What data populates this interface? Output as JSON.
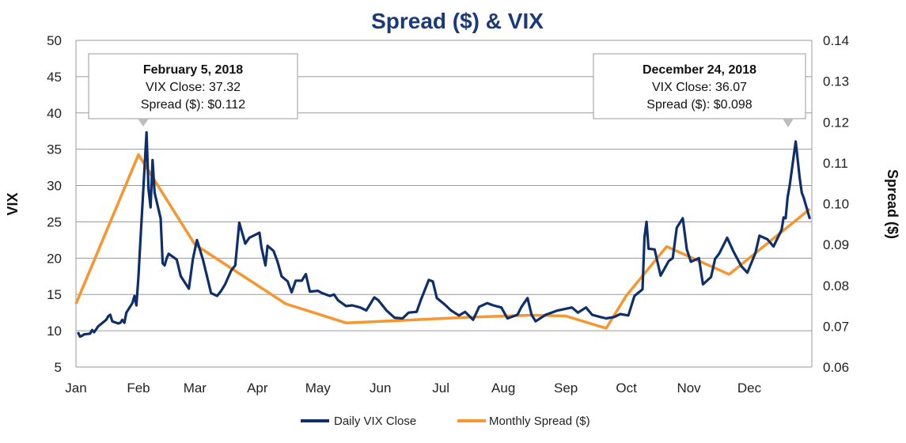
{
  "colors": {
    "title": "#1a3a7a",
    "vix": "#0f2f6b",
    "spread": "#f7962e",
    "grid": "#9a9a9a",
    "annotation_border": "#9a9a9a",
    "annotation_arrow": "#bdbdbd"
  },
  "chart_data": {
    "type": "line",
    "title": "Spread ($) & VIX",
    "ylabel": "VIX",
    "y2label": "Spread ($)",
    "ylim": [
      5,
      50
    ],
    "yticks": [
      "5",
      "10",
      "15",
      "20",
      "25",
      "30",
      "35",
      "40",
      "45",
      "50"
    ],
    "y2lim": [
      0.06,
      0.14
    ],
    "y2ticks": [
      "0.06",
      "0.07",
      "0.08",
      "0.09",
      "0.10",
      "0.11",
      "0.12",
      "0.13",
      "0.14"
    ],
    "x_range": [
      "2018-01-01",
      "2018-12-31"
    ],
    "xtick_labels": [
      "Jan",
      "Feb",
      "Mar",
      "Apr",
      "May",
      "Jun",
      "Jul",
      "Aug",
      "Sep",
      "Oct",
      "Nov",
      "Dec"
    ],
    "xtick_dates": [
      "2018-01-01",
      "2018-02-01",
      "2018-03-01",
      "2018-04-01",
      "2018-05-01",
      "2018-06-01",
      "2018-07-01",
      "2018-08-01",
      "2018-09-01",
      "2018-10-01",
      "2018-11-01",
      "2018-12-01"
    ],
    "grid": true,
    "legend_position": "bottom",
    "series": [
      {
        "name": "Daily VIX Close",
        "axis": "left",
        "x": [
          "2018-01-02",
          "2018-01-03",
          "2018-01-04",
          "2018-01-05",
          "2018-01-08",
          "2018-01-09",
          "2018-01-10",
          "2018-01-11",
          "2018-01-12",
          "2018-01-16",
          "2018-01-17",
          "2018-01-18",
          "2018-01-19",
          "2018-01-22",
          "2018-01-23",
          "2018-01-24",
          "2018-01-25",
          "2018-01-26",
          "2018-01-29",
          "2018-01-30",
          "2018-01-31",
          "2018-02-01",
          "2018-02-02",
          "2018-02-05",
          "2018-02-06",
          "2018-02-07",
          "2018-02-08",
          "2018-02-09",
          "2018-02-12",
          "2018-02-13",
          "2018-02-14",
          "2018-02-15",
          "2018-02-16",
          "2018-02-20",
          "2018-02-22",
          "2018-02-26",
          "2018-02-28",
          "2018-03-02",
          "2018-03-05",
          "2018-03-07",
          "2018-03-09",
          "2018-03-12",
          "2018-03-14",
          "2018-03-16",
          "2018-03-19",
          "2018-03-21",
          "2018-03-23",
          "2018-03-26",
          "2018-03-28",
          "2018-04-02",
          "2018-04-03",
          "2018-04-05",
          "2018-04-06",
          "2018-04-09",
          "2018-04-11",
          "2018-04-13",
          "2018-04-16",
          "2018-04-18",
          "2018-04-20",
          "2018-04-23",
          "2018-04-25",
          "2018-04-27",
          "2018-05-01",
          "2018-05-03",
          "2018-05-07",
          "2018-05-09",
          "2018-05-11",
          "2018-05-15",
          "2018-05-18",
          "2018-05-22",
          "2018-05-25",
          "2018-05-29",
          "2018-05-31",
          "2018-06-04",
          "2018-06-08",
          "2018-06-12",
          "2018-06-15",
          "2018-06-19",
          "2018-06-21",
          "2018-06-25",
          "2018-06-27",
          "2018-06-29",
          "2018-07-03",
          "2018-07-06",
          "2018-07-10",
          "2018-07-13",
          "2018-07-17",
          "2018-07-20",
          "2018-07-24",
          "2018-07-27",
          "2018-07-31",
          "2018-08-03",
          "2018-08-08",
          "2018-08-10",
          "2018-08-13",
          "2018-08-15",
          "2018-08-17",
          "2018-08-22",
          "2018-08-28",
          "2018-09-04",
          "2018-09-07",
          "2018-09-11",
          "2018-09-14",
          "2018-09-18",
          "2018-09-21",
          "2018-09-25",
          "2018-09-28",
          "2018-10-02",
          "2018-10-05",
          "2018-10-09",
          "2018-10-10",
          "2018-10-11",
          "2018-10-12",
          "2018-10-15",
          "2018-10-18",
          "2018-10-22",
          "2018-10-24",
          "2018-10-26",
          "2018-10-29",
          "2018-10-31",
          "2018-11-02",
          "2018-11-06",
          "2018-11-08",
          "2018-11-12",
          "2018-11-14",
          "2018-11-16",
          "2018-11-20",
          "2018-11-23",
          "2018-11-27",
          "2018-11-30",
          "2018-12-04",
          "2018-12-06",
          "2018-12-10",
          "2018-12-13",
          "2018-12-17",
          "2018-12-18",
          "2018-12-19",
          "2018-12-20",
          "2018-12-21",
          "2018-12-24",
          "2018-12-26",
          "2018-12-27",
          "2018-12-28",
          "2018-12-31"
        ],
        "values": [
          9.8,
          9.2,
          9.3,
          9.5,
          9.6,
          10.1,
          9.8,
          10.2,
          10.6,
          11.5,
          12.0,
          12.2,
          11.3,
          11.0,
          11.1,
          11.5,
          11.1,
          12.5,
          13.8,
          14.8,
          13.5,
          17.5,
          22.5,
          37.32,
          29.5,
          27.0,
          33.5,
          29.0,
          25.5,
          19.3,
          19.0,
          20.0,
          20.6,
          19.8,
          17.5,
          15.8,
          19.9,
          22.5,
          19.8,
          17.5,
          15.2,
          14.8,
          15.5,
          16.4,
          18.3,
          19.0,
          24.9,
          22.0,
          22.8,
          23.5,
          21.5,
          19.0,
          21.7,
          21.0,
          19.5,
          17.5,
          16.8,
          15.3,
          16.9,
          16.9,
          17.8,
          15.4,
          15.5,
          15.2,
          14.8,
          15.0,
          14.2,
          13.4,
          13.5,
          13.2,
          12.8,
          14.6,
          14.2,
          12.8,
          11.8,
          11.7,
          12.5,
          12.6,
          14.2,
          17.0,
          16.8,
          14.5,
          13.6,
          12.8,
          12.1,
          12.6,
          11.5,
          13.3,
          13.8,
          13.5,
          13.2,
          11.7,
          12.2,
          13.3,
          14.5,
          12.2,
          11.3,
          12.2,
          12.8,
          13.2,
          12.5,
          13.2,
          12.2,
          11.9,
          11.7,
          11.9,
          12.3,
          12.1,
          14.8,
          15.7,
          22.9,
          25.0,
          21.3,
          21.2,
          17.6,
          19.6,
          20.0,
          24.2,
          25.5,
          21.2,
          19.5,
          20.0,
          16.4,
          17.4,
          19.9,
          20.6,
          22.8,
          21.0,
          18.9,
          18.0,
          20.7,
          23.1,
          22.6,
          21.6,
          23.9,
          25.6,
          25.5,
          28.4,
          30.0,
          36.07,
          31.0,
          29.0,
          28.3,
          25.4
        ]
      },
      {
        "name": "Monthly Spread ($)",
        "axis": "right",
        "x": [
          "2018-01-01",
          "2018-02-01",
          "2018-03-01",
          "2018-04-15",
          "2018-05-15",
          "2018-06-15",
          "2018-07-15",
          "2018-08-15",
          "2018-09-01",
          "2018-09-21",
          "2018-10-01",
          "2018-10-21",
          "2018-11-21",
          "2018-12-31"
        ],
        "values": [
          0.0755,
          0.112,
          0.09,
          0.0755,
          0.0708,
          0.0715,
          0.0722,
          0.0727,
          0.0725,
          0.0695,
          0.0775,
          0.0895,
          0.0827,
          0.0987
        ]
      }
    ],
    "annotations": [
      {
        "date": "2018-02-05",
        "vix": 37.32,
        "title": "February 5, 2018",
        "line1": "VIX Close: 37.32",
        "line2": "Spread ($): $0.112"
      },
      {
        "date": "2018-12-24",
        "vix": 36.07,
        "title": "December 24, 2018",
        "line1": "VIX Close: 36.07",
        "line2": "Spread ($): $0.098"
      }
    ]
  }
}
